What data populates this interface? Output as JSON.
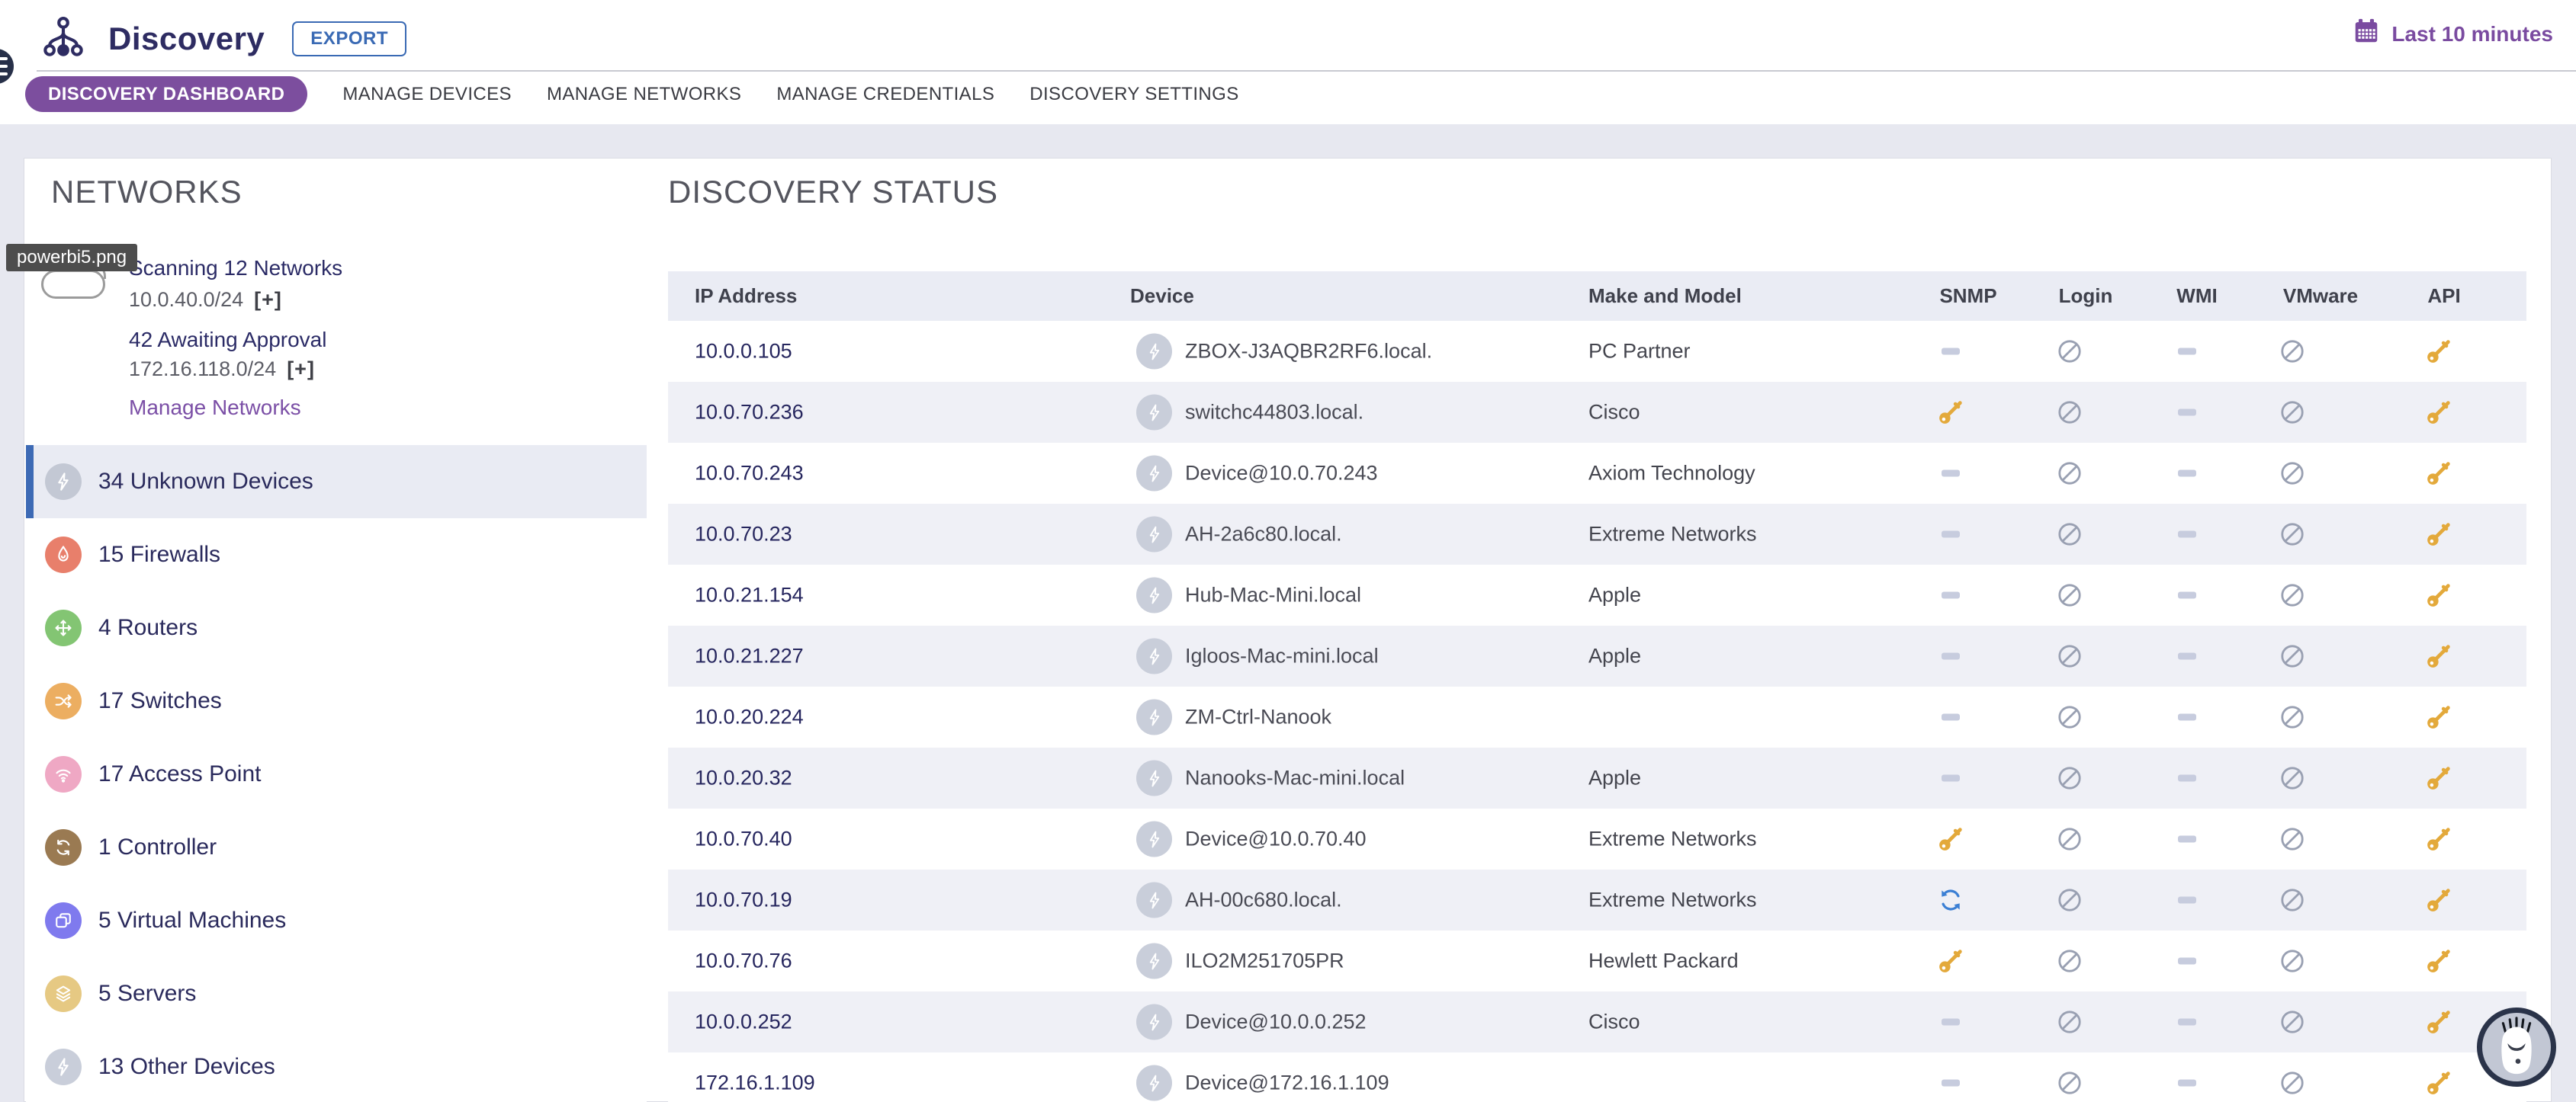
{
  "header": {
    "app_title": "Discovery",
    "export_label": "EXPORT",
    "time_range_label": "Last 10 minutes"
  },
  "tabs": {
    "items": [
      {
        "label": "DISCOVERY DASHBOARD",
        "active": true
      },
      {
        "label": "MANAGE DEVICES",
        "active": false
      },
      {
        "label": "MANAGE NETWORKS",
        "active": false
      },
      {
        "label": "MANAGE CREDENTIALS",
        "active": false
      },
      {
        "label": "DISCOVERY SETTINGS",
        "active": false
      }
    ]
  },
  "tooltip_text": "powerbi5.png",
  "sidebar": {
    "section_title": "NETWORKS",
    "scanning_label": "Scanning 12 Networks",
    "scanning_network": "10.0.40.0/24",
    "awaiting_label": "42 Awaiting Approval",
    "awaiting_network": "172.16.118.0/24",
    "expand_label": "[+]",
    "manage_label": "Manage Networks",
    "categories": [
      {
        "label": "34 Unknown Devices",
        "icon": "lightning",
        "color": "#C3C8D4",
        "selected": true
      },
      {
        "label": "15 Firewalls",
        "icon": "flame",
        "color": "#E87F6B",
        "selected": false
      },
      {
        "label": "4 Routers",
        "icon": "arrows",
        "color": "#83C573",
        "selected": false
      },
      {
        "label": "17 Switches",
        "icon": "shuffle",
        "color": "#ECAE61",
        "selected": false
      },
      {
        "label": "17 Access Point",
        "icon": "wifi",
        "color": "#EFA8C4",
        "selected": false
      },
      {
        "label": "1 Controller",
        "icon": "sync",
        "color": "#9A7A52",
        "selected": false
      },
      {
        "label": "5 Virtual Machines",
        "icon": "vm",
        "color": "#7F7AEE",
        "selected": false
      },
      {
        "label": "5 Servers",
        "icon": "layers",
        "color": "#E6C983",
        "selected": false
      },
      {
        "label": "13 Other Devices",
        "icon": "lightning",
        "color": "#C9CEDA",
        "selected": false
      }
    ]
  },
  "main": {
    "section_title": "DISCOVERY STATUS",
    "columns": [
      "IP Address",
      "Device",
      "Make and Model",
      "SNMP",
      "Login",
      "WMI",
      "VMware",
      "API"
    ],
    "rows": [
      {
        "ip": "10.0.0.105",
        "device": "ZBOX-J3AQBR2RF6.local.",
        "make": "PC Partner",
        "statuses": [
          "dash",
          "blocked",
          "dash",
          "blocked",
          "key"
        ]
      },
      {
        "ip": "10.0.70.236",
        "device": "switchc44803.local.",
        "make": "Cisco",
        "statuses": [
          "key",
          "blocked",
          "dash",
          "blocked",
          "key"
        ]
      },
      {
        "ip": "10.0.70.243",
        "device": "Device@10.0.70.243",
        "make": "Axiom Technology",
        "statuses": [
          "dash",
          "blocked",
          "dash",
          "blocked",
          "key"
        ]
      },
      {
        "ip": "10.0.70.23",
        "device": "AH-2a6c80.local.",
        "make": "Extreme Networks",
        "statuses": [
          "dash",
          "blocked",
          "dash",
          "blocked",
          "key"
        ]
      },
      {
        "ip": "10.0.21.154",
        "device": "Hub-Mac-Mini.local",
        "make": "Apple",
        "statuses": [
          "dash",
          "blocked",
          "dash",
          "blocked",
          "key"
        ]
      },
      {
        "ip": "10.0.21.227",
        "device": "Igloos-Mac-mini.local",
        "make": "Apple",
        "statuses": [
          "dash",
          "blocked",
          "dash",
          "blocked",
          "key"
        ]
      },
      {
        "ip": "10.0.20.224",
        "device": "ZM-Ctrl-Nanook",
        "make": "",
        "statuses": [
          "dash",
          "blocked",
          "dash",
          "blocked",
          "key"
        ]
      },
      {
        "ip": "10.0.20.32",
        "device": "Nanooks-Mac-mini.local",
        "make": "Apple",
        "statuses": [
          "dash",
          "blocked",
          "dash",
          "blocked",
          "key"
        ]
      },
      {
        "ip": "10.0.70.40",
        "device": "Device@10.0.70.40",
        "make": "Extreme Networks",
        "statuses": [
          "key",
          "blocked",
          "dash",
          "blocked",
          "key"
        ]
      },
      {
        "ip": "10.0.70.19",
        "device": "AH-00c680.local.",
        "make": "Extreme Networks",
        "statuses": [
          "sync",
          "blocked",
          "dash",
          "blocked",
          "key"
        ]
      },
      {
        "ip": "10.0.70.76",
        "device": "ILO2M251705PR",
        "make": "Hewlett Packard",
        "statuses": [
          "key",
          "blocked",
          "dash",
          "blocked",
          "key"
        ]
      },
      {
        "ip": "10.0.0.252",
        "device": "Device@10.0.0.252",
        "make": "Cisco",
        "statuses": [
          "dash",
          "blocked",
          "dash",
          "blocked",
          "key"
        ]
      },
      {
        "ip": "172.16.1.109",
        "device": "Device@172.16.1.109",
        "make": "",
        "statuses": [
          "dash",
          "blocked",
          "dash",
          "blocked",
          "key"
        ]
      }
    ]
  },
  "colors": {
    "accent_purple": "#7C4E9E",
    "link_purple": "#7B4FA6",
    "export_blue": "#3A6AB4",
    "selected_bar_blue": "#3D6AB5",
    "status_key_gold": "#E3A93B",
    "status_blocked_gray": "#99A0B2",
    "status_dash_gray": "#C7CCDE",
    "status_sync_blue": "#3B7FD4"
  },
  "fab": {
    "icon": "bear-paw"
  }
}
